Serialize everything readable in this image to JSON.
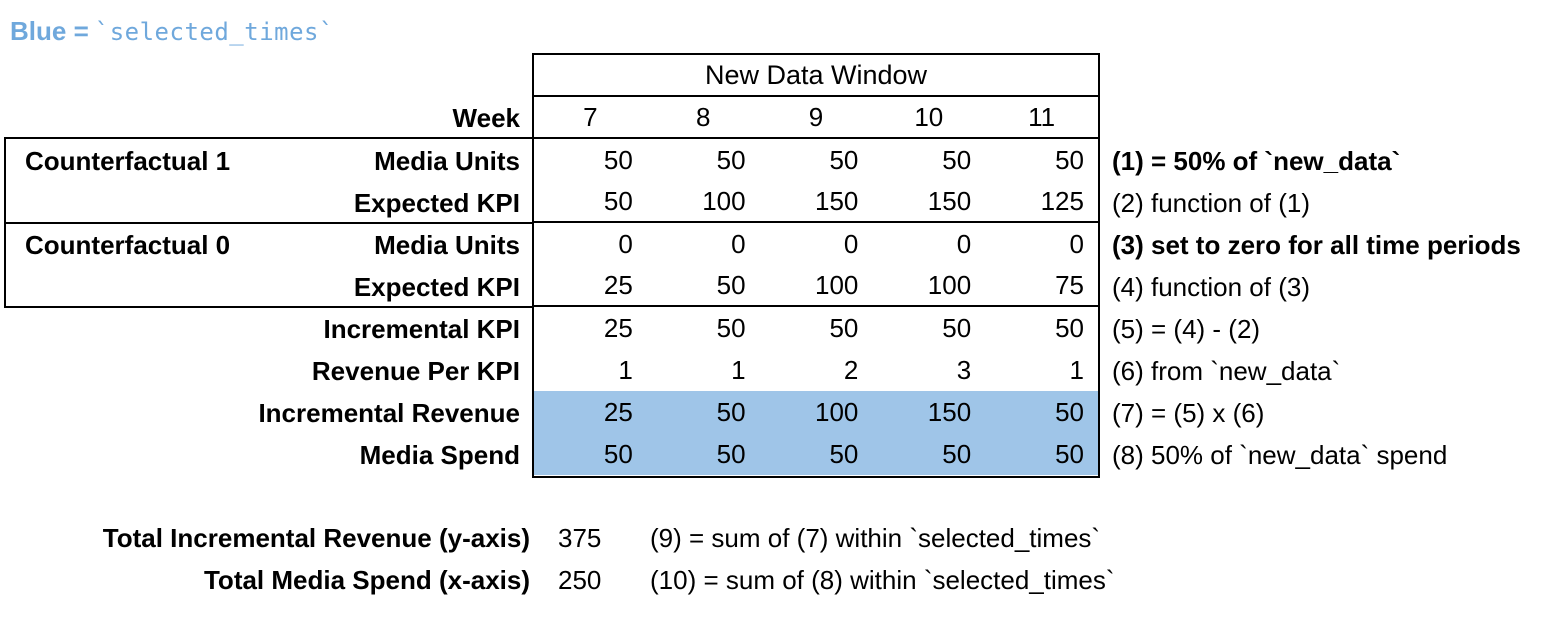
{
  "legend": {
    "prefix": "Blue =",
    "code": "`selected_times`"
  },
  "colors": {
    "highlight": "#9FC5E8",
    "legend_text": "#6FA8DC"
  },
  "table": {
    "window_title": "New Data Window",
    "week_label": "Week",
    "weeks": [
      "7",
      "8",
      "9",
      "10",
      "11"
    ],
    "groups": [
      {
        "label": "Counterfactual 1",
        "row_index": 0
      },
      {
        "label": "Counterfactual 0",
        "row_index": 2
      }
    ],
    "rows": [
      {
        "label": "Media Units",
        "values": [
          "50",
          "50",
          "50",
          "50",
          "50"
        ],
        "annotation": "(1) = 50% of `new_data`",
        "annotation_bold": true,
        "highlight": false,
        "group_end": false
      },
      {
        "label": "Expected KPI",
        "values": [
          "50",
          "100",
          "150",
          "150",
          "125"
        ],
        "annotation": "(2) function of (1)",
        "annotation_bold": false,
        "highlight": false,
        "group_end": true
      },
      {
        "label": "Media Units",
        "values": [
          "0",
          "0",
          "0",
          "0",
          "0"
        ],
        "annotation": "(3) set to zero for all time periods",
        "annotation_bold": true,
        "highlight": false,
        "group_end": false
      },
      {
        "label": "Expected KPI",
        "values": [
          "25",
          "50",
          "100",
          "100",
          "75"
        ],
        "annotation": "(4) function of (3)",
        "annotation_bold": false,
        "highlight": false,
        "group_end": true
      },
      {
        "label": "Incremental KPI",
        "values": [
          "25",
          "50",
          "50",
          "50",
          "50"
        ],
        "annotation": "(5) = (4) - (2)",
        "annotation_bold": false,
        "highlight": false,
        "group_end": false
      },
      {
        "label": "Revenue Per KPI",
        "values": [
          "1",
          "1",
          "2",
          "3",
          "1"
        ],
        "annotation": "(6) from `new_data`",
        "annotation_bold": false,
        "highlight": false,
        "group_end": false
      },
      {
        "label": "Incremental Revenue",
        "values": [
          "25",
          "50",
          "100",
          "150",
          "50"
        ],
        "annotation": "(7) = (5) x (6)",
        "annotation_bold": false,
        "highlight": true,
        "group_end": false
      },
      {
        "label": "Media Spend",
        "values": [
          "50",
          "50",
          "50",
          "50",
          "50"
        ],
        "annotation": "(8) 50% of `new_data` spend",
        "annotation_bold": false,
        "highlight": true,
        "group_end": false
      }
    ]
  },
  "totals": [
    {
      "label": "Total Incremental Revenue (y-axis)",
      "value": "375",
      "annotation": "(9) = sum of (7) within `selected_times`"
    },
    {
      "label": "Total Media Spend (x-axis)",
      "value": "250",
      "annotation": "(10) = sum of (8) within `selected_times`"
    }
  ]
}
